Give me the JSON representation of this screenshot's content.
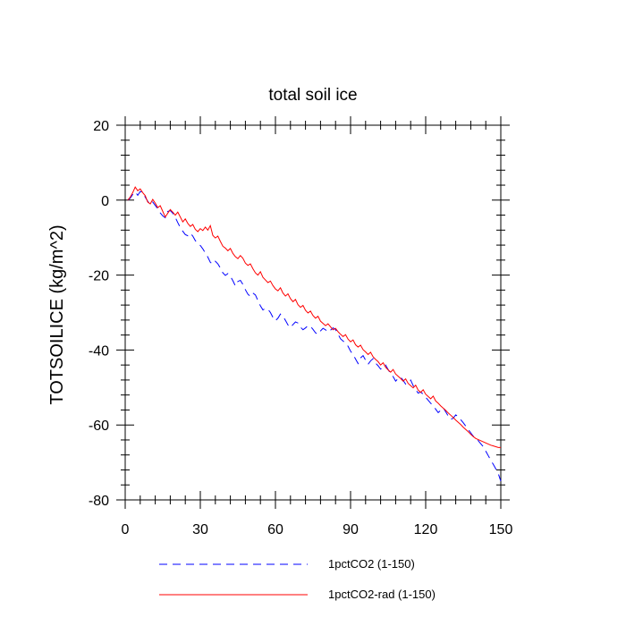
{
  "chart_data": {
    "type": "line",
    "title": "total soil ice",
    "xlabel": "",
    "ylabel": "TOTSOILICE  (kg/m^2)",
    "xlim": [
      0,
      150
    ],
    "ylim": [
      -80,
      20
    ],
    "x_ticks": [
      0,
      30,
      60,
      90,
      120,
      150
    ],
    "x_tick_labels": [
      "0",
      "30",
      "60",
      "90",
      "120",
      "150"
    ],
    "y_ticks": [
      -80,
      -60,
      -40,
      -20,
      0,
      20
    ],
    "y_tick_labels": [
      "-80",
      "-60",
      "-40",
      "-20",
      "0",
      "20"
    ],
    "grid": false,
    "legend_position": "bottom",
    "series": [
      {
        "name": "1pctCO2 (1-150)",
        "color": "#0000ff",
        "dash": "dashed",
        "x": [
          1,
          2,
          3,
          4,
          5,
          6,
          7,
          8,
          9,
          10,
          11,
          12,
          13,
          14,
          15,
          16,
          17,
          18,
          19,
          20,
          21,
          22,
          23,
          24,
          25,
          26,
          27,
          28,
          29,
          30,
          31,
          32,
          33,
          34,
          35,
          36,
          37,
          38,
          39,
          40,
          41,
          42,
          43,
          44,
          45,
          46,
          47,
          48,
          49,
          50,
          51,
          52,
          53,
          54,
          55,
          56,
          57,
          58,
          59,
          60,
          61,
          62,
          63,
          64,
          65,
          66,
          67,
          68,
          69,
          70,
          71,
          72,
          73,
          74,
          75,
          76,
          77,
          78,
          79,
          80,
          81,
          82,
          83,
          84,
          85,
          86,
          87,
          88,
          89,
          90,
          91,
          92,
          93,
          94,
          95,
          96,
          97,
          98,
          99,
          100,
          101,
          102,
          103,
          104,
          105,
          106,
          107,
          108,
          109,
          110,
          111,
          112,
          113,
          114,
          115,
          116,
          117,
          118,
          119,
          120,
          121,
          122,
          123,
          124,
          125,
          126,
          127,
          128,
          129,
          130,
          131,
          132,
          133,
          134,
          135,
          136,
          137,
          138,
          139,
          140,
          141,
          142,
          143,
          144,
          145,
          146,
          147,
          148,
          149,
          150
        ],
        "values": [
          0.0,
          0.5,
          1.5,
          2.2,
          1.3,
          2.3,
          2.1,
          0.8,
          -0.3,
          -1.2,
          -0.5,
          -1.4,
          -2.3,
          -3.4,
          -4.2,
          -4.7,
          -3.0,
          -2.8,
          -3.5,
          -4.6,
          -6.0,
          -7.3,
          -8.3,
          -9.2,
          -9.5,
          -8.8,
          -9.6,
          -10.8,
          -11.6,
          -12.1,
          -13.0,
          -14.1,
          -15.2,
          -16.6,
          -17.1,
          -16.3,
          -17.0,
          -18.1,
          -19.4,
          -20.1,
          -19.6,
          -20.3,
          -21.5,
          -22.9,
          -21.7,
          -21.4,
          -22.5,
          -23.9,
          -25.1,
          -25.7,
          -24.8,
          -25.3,
          -26.8,
          -28.2,
          -29.3,
          -28.9,
          -29.1,
          -30.0,
          -31.3,
          -32.2,
          -31.5,
          -30.4,
          -31.0,
          -32.1,
          -33.3,
          -34.0,
          -33.2,
          -32.5,
          -32.8,
          -33.9,
          -34.6,
          -34.1,
          -33.5,
          -33.7,
          -34.5,
          -35.4,
          -35.8,
          -34.9,
          -34.2,
          -34.6,
          -35.2,
          -34.7,
          -34.1,
          -34.5,
          -35.8,
          -37.0,
          -37.6,
          -38.1,
          -39.0,
          -40.3,
          -41.2,
          -42.4,
          -43.6,
          -42.1,
          -41.5,
          -42.7,
          -43.8,
          -42.9,
          -42.3,
          -43.5,
          -44.2,
          -45.1,
          -44.7,
          -44.0,
          -45.2,
          -46.3,
          -47.1,
          -48.3,
          -47.6,
          -47.2,
          -48.1,
          -49.1,
          -48.6,
          -48.0,
          -49.5,
          -50.6,
          -51.5,
          -51.2,
          -51.8,
          -52.6,
          -53.4,
          -54.2,
          -54.9,
          -55.8,
          -56.7,
          -56.1,
          -55.4,
          -56.5,
          -57.6,
          -58.5,
          -58.2,
          -57.3,
          -57.8,
          -58.6,
          -59.4,
          -60.3,
          -61.2,
          -62.1,
          -63.0,
          -63.6,
          -64.2,
          -65.0,
          -65.8,
          -67.0,
          -68.2,
          -69.4,
          -70.5,
          -71.7,
          -73.0,
          -75.0
        ]
      },
      {
        "name": "1pctCO2-rad (1-150)",
        "color": "#ff0000",
        "dash": "solid",
        "x": [
          1,
          2,
          3,
          4,
          5,
          6,
          7,
          8,
          9,
          10,
          11,
          12,
          13,
          14,
          15,
          16,
          17,
          18,
          19,
          20,
          21,
          22,
          23,
          24,
          25,
          26,
          27,
          28,
          29,
          30,
          31,
          32,
          33,
          34,
          35,
          36,
          37,
          38,
          39,
          40,
          41,
          42,
          43,
          44,
          45,
          46,
          47,
          48,
          49,
          50,
          51,
          52,
          53,
          54,
          55,
          56,
          57,
          58,
          59,
          60,
          61,
          62,
          63,
          64,
          65,
          66,
          67,
          68,
          69,
          70,
          71,
          72,
          73,
          74,
          75,
          76,
          77,
          78,
          79,
          80,
          81,
          82,
          83,
          84,
          85,
          86,
          87,
          88,
          89,
          90,
          91,
          92,
          93,
          94,
          95,
          96,
          97,
          98,
          99,
          100,
          101,
          102,
          103,
          104,
          105,
          106,
          107,
          108,
          109,
          110,
          111,
          112,
          113,
          114,
          115,
          116,
          117,
          118,
          119,
          120,
          121,
          122,
          123,
          124,
          125,
          126,
          127,
          128,
          129,
          130,
          131,
          132,
          133,
          134,
          135,
          136,
          137,
          138,
          139,
          140,
          141,
          142,
          143,
          144,
          145,
          146,
          147,
          148,
          149,
          150
        ],
        "values": [
          0.0,
          0.8,
          2.0,
          3.5,
          2.5,
          3.0,
          2.0,
          1.2,
          -0.5,
          -1.0,
          0.2,
          -0.8,
          -2.0,
          -1.5,
          -3.0,
          -4.5,
          -3.5,
          -2.5,
          -3.2,
          -4.0,
          -3.2,
          -4.5,
          -5.8,
          -5.0,
          -6.2,
          -7.0,
          -6.5,
          -7.8,
          -8.4,
          -7.6,
          -8.1,
          -7.2,
          -8.0,
          -6.8,
          -9.4,
          -10.1,
          -9.6,
          -11.0,
          -12.3,
          -12.8,
          -13.5,
          -12.9,
          -14.2,
          -15.1,
          -15.6,
          -14.8,
          -15.5,
          -16.8,
          -17.4,
          -17.0,
          -18.3,
          -19.4,
          -20.0,
          -19.1,
          -20.6,
          -21.3,
          -22.0,
          -21.6,
          -22.8,
          -23.7,
          -24.2,
          -23.4,
          -24.8,
          -25.6,
          -25.0,
          -26.3,
          -27.1,
          -26.5,
          -27.9,
          -28.6,
          -28.1,
          -29.4,
          -30.1,
          -29.6,
          -30.8,
          -31.5,
          -31.0,
          -32.3,
          -32.9,
          -33.5,
          -33.0,
          -33.8,
          -34.6,
          -34.2,
          -35.1,
          -35.8,
          -36.4,
          -35.9,
          -37.1,
          -37.8,
          -37.3,
          -38.6,
          -39.2,
          -38.7,
          -39.9,
          -40.5,
          -41.2,
          -40.6,
          -41.8,
          -42.5,
          -43.1,
          -44.0,
          -43.4,
          -44.6,
          -45.3,
          -45.9,
          -45.2,
          -46.4,
          -47.0,
          -47.6,
          -48.3,
          -47.7,
          -48.9,
          -49.5,
          -50.1,
          -49.4,
          -50.7,
          -51.3,
          -50.6,
          -51.8,
          -52.4,
          -53.0,
          -52.3,
          -53.6,
          -54.2,
          -54.9,
          -55.5,
          -56.1,
          -56.8,
          -57.4,
          -58.0,
          -58.7,
          -59.3,
          -59.9,
          -60.6,
          -61.2,
          -61.8,
          -62.5,
          -63.1,
          -63.6,
          -63.9,
          -64.2,
          -64.5,
          -64.8,
          -65.1,
          -65.4,
          -65.6,
          -65.8,
          -66.0,
          -66.0
        ]
      }
    ]
  }
}
